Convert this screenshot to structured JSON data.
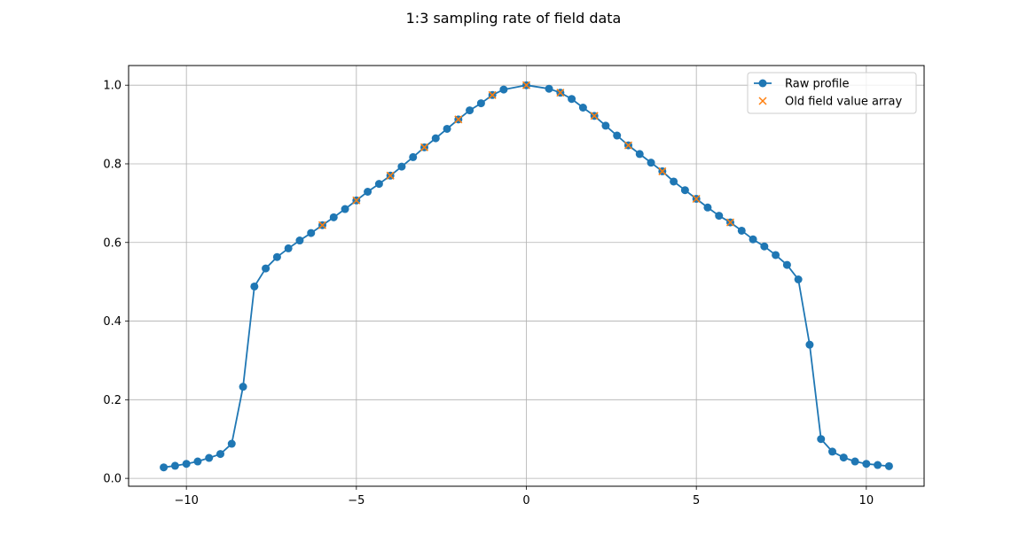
{
  "chart_data": {
    "type": "line",
    "title": "1:3 sampling rate of field data",
    "xlabel": "",
    "ylabel": "",
    "xlim": [
      -11.7,
      11.7
    ],
    "ylim": [
      -0.02,
      1.05
    ],
    "xticks": [
      -10,
      -5,
      0,
      5,
      10
    ],
    "xtick_labels": [
      "−10",
      "−5",
      "0",
      "5",
      "10"
    ],
    "yticks": [
      0.0,
      0.2,
      0.4,
      0.6,
      0.8,
      1.0
    ],
    "ytick_labels": [
      "0.0",
      "0.2",
      "0.4",
      "0.6",
      "0.8",
      "1.0"
    ],
    "grid": true,
    "legend_position": "top-right",
    "series": [
      {
        "name": "Raw profile",
        "kind": "line-marker",
        "color": "#1f77b4",
        "x": [
          -10.667,
          -10.333,
          -10.0,
          -9.667,
          -9.333,
          -9.0,
          -8.667,
          -8.333,
          -8.0,
          -7.667,
          -7.333,
          -7.0,
          -6.667,
          -6.333,
          -6.0,
          -5.667,
          -5.333,
          -5.0,
          -4.667,
          -4.333,
          -4.0,
          -3.667,
          -3.333,
          -3.0,
          -2.667,
          -2.333,
          -2.0,
          -1.667,
          -1.333,
          -1.0,
          -0.667,
          0.0,
          0.667,
          1.0,
          1.333,
          1.667,
          2.0,
          2.333,
          2.667,
          3.0,
          3.333,
          3.667,
          4.0,
          4.333,
          4.667,
          5.0,
          5.333,
          5.667,
          6.0,
          6.333,
          6.667,
          7.0,
          7.333,
          7.667,
          8.0,
          8.333,
          8.667,
          9.0,
          9.333,
          9.667,
          10.0,
          10.333,
          10.667
        ],
        "y": [
          0.028,
          0.032,
          0.037,
          0.043,
          0.052,
          0.062,
          0.088,
          0.233,
          0.488,
          0.534,
          0.563,
          0.585,
          0.605,
          0.624,
          0.644,
          0.664,
          0.685,
          0.707,
          0.729,
          0.749,
          0.77,
          0.793,
          0.817,
          0.842,
          0.865,
          0.889,
          0.913,
          0.936,
          0.954,
          0.975,
          0.989,
          1.0,
          0.991,
          0.981,
          0.965,
          0.943,
          0.922,
          0.897,
          0.872,
          0.847,
          0.825,
          0.803,
          0.781,
          0.755,
          0.733,
          0.711,
          0.689,
          0.668,
          0.651,
          0.63,
          0.608,
          0.59,
          0.568,
          0.543,
          0.506,
          0.34,
          0.1,
          0.068,
          0.053,
          0.043,
          0.037,
          0.034,
          0.031
        ]
      },
      {
        "name": "Old field value array",
        "kind": "marker-x",
        "color": "#ff7f0e",
        "x": [
          -6.0,
          -5.0,
          -4.0,
          -3.0,
          -2.0,
          -1.0,
          0.0,
          1.0,
          2.0,
          3.0,
          4.0,
          5.0,
          6.0
        ],
        "y": [
          0.644,
          0.707,
          0.77,
          0.842,
          0.913,
          0.975,
          1.0,
          0.981,
          0.922,
          0.847,
          0.781,
          0.711,
          0.651
        ]
      }
    ]
  }
}
